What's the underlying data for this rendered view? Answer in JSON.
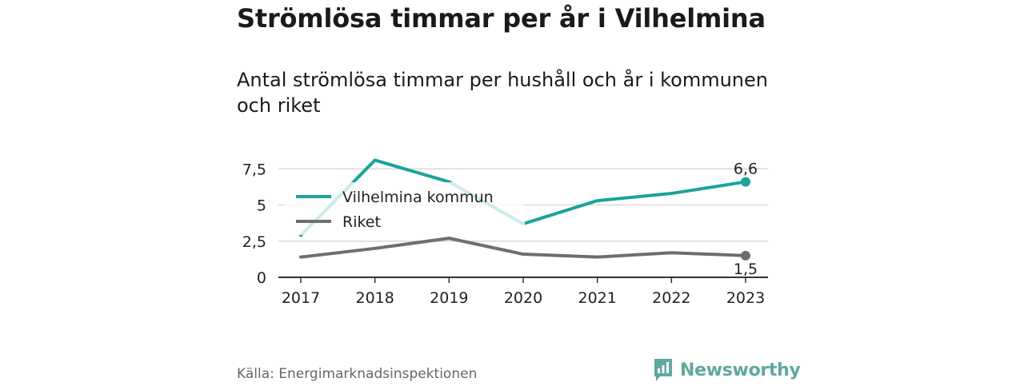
{
  "title": "Strömlösa timmar per år i Vilhelmina",
  "subtitle": "Antal strömlösa timmar per hushåll och år i kommunen och riket",
  "source": "Källa: Energimarknadsinspektionen",
  "brand": {
    "name": "Newsworthy",
    "icon": "newsworthy-logo-icon"
  },
  "colors": {
    "kommun": "#1aa39a",
    "riket": "#6e6e70",
    "grid": "#d9d9d9",
    "brand": "#5fa8a0"
  },
  "chart_data": {
    "type": "line",
    "x": [
      "2017",
      "2018",
      "2019",
      "2020",
      "2021",
      "2022",
      "2023"
    ],
    "series": [
      {
        "name": "Vilhelmina kommun",
        "values": [
          2.9,
          8.1,
          6.6,
          3.7,
          5.3,
          5.8,
          6.6
        ],
        "color": "#1aa39a",
        "end_label": "6,6"
      },
      {
        "name": "Riket",
        "values": [
          1.4,
          2.0,
          2.7,
          1.6,
          1.4,
          1.7,
          1.5
        ],
        "color": "#6e6e70",
        "end_label": "1,5"
      }
    ],
    "yticks": [
      {
        "value": 0,
        "label": "0"
      },
      {
        "value": 2.5,
        "label": "2,5"
      },
      {
        "value": 5,
        "label": "5"
      },
      {
        "value": 7.5,
        "label": "7,5"
      }
    ],
    "ylim": [
      0,
      8.4
    ],
    "legend": "top-left",
    "grid": true
  }
}
